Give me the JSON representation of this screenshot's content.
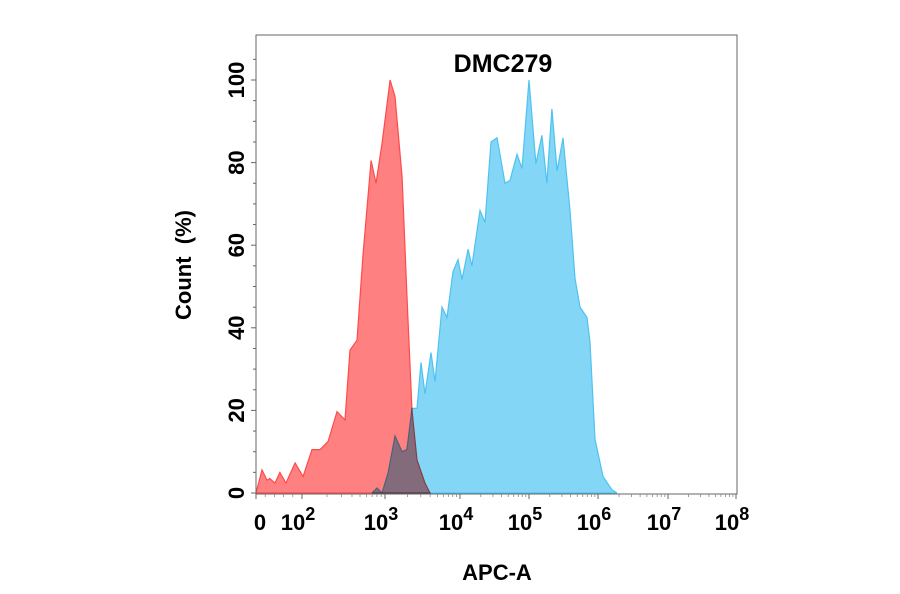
{
  "chart_data": {
    "type": "area",
    "title": "DMC279",
    "xlabel": "APC-A",
    "ylabel": "Count  (%)",
    "x_scale": "biexponential",
    "xlim": [
      0,
      100000000
    ],
    "ylim": [
      0,
      100
    ],
    "grid": false,
    "x_ticks": [
      {
        "value": 0,
        "base": "0",
        "exp": ""
      },
      {
        "value": 100,
        "base": "10",
        "exp": "2"
      },
      {
        "value": 1000,
        "base": "10",
        "exp": "3"
      },
      {
        "value": 10000,
        "base": "10",
        "exp": "4"
      },
      {
        "value": 100000,
        "base": "10",
        "exp": "5"
      },
      {
        "value": 1000000,
        "base": "10",
        "exp": "6"
      },
      {
        "value": 10000000,
        "base": "10",
        "exp": "7"
      },
      {
        "value": 100000000,
        "base": "10",
        "exp": "8"
      }
    ],
    "y_ticks": [
      "0",
      "20",
      "40",
      "60",
      "80",
      "100"
    ],
    "series": [
      {
        "color": "#ff8080",
        "stroke": "#ff4a4a",
        "x": [
          0,
          13,
          24,
          30,
          41,
          52,
          65,
          85,
          103,
          132,
          165,
          206,
          264,
          330,
          379,
          460,
          544,
          680,
          780,
          920,
          1170,
          1360,
          1690,
          1960,
          2290,
          2670,
          3410,
          3980
        ],
        "y": [
          0,
          5.6,
          3.1,
          3.5,
          2.4,
          5,
          2.4,
          7.3,
          4,
          10.5,
          10.5,
          12.5,
          19.7,
          17.7,
          34.6,
          37,
          58,
          80.5,
          75,
          84.6,
          100,
          96,
          76.5,
          48,
          20,
          8,
          2.4,
          0
        ]
      },
      {
        "color": "#84d6f6",
        "stroke": "#4fc2ef",
        "x": [
          697,
          801,
          920,
          1096,
          1360,
          1690,
          1960,
          2290,
          2670,
          3020,
          3410,
          4100,
          4640,
          5750,
          6710,
          8070,
          9400,
          10700,
          13100,
          14900,
          19500,
          23000,
          28100,
          34400,
          38000,
          44900,
          53000,
          67000,
          79200,
          100000,
          126000,
          154000,
          182000,
          215000,
          255000,
          311000,
          393000,
          464000,
          548000,
          693000,
          766000,
          905000,
          1180000,
          1580000,
          1870000
        ],
        "y": [
          0,
          1.2,
          0,
          4.8,
          13.8,
          10,
          10.5,
          20.5,
          20.5,
          31.6,
          24,
          34,
          27,
          45,
          42.5,
          53.6,
          56.5,
          51.7,
          59,
          55,
          68.4,
          65.5,
          85,
          86,
          82,
          75,
          75.7,
          82,
          78.6,
          100,
          79.7,
          86.6,
          75,
          93,
          78,
          86,
          68.4,
          52,
          45,
          42.5,
          36.5,
          13,
          4,
          0.8,
          0
        ]
      }
    ]
  }
}
